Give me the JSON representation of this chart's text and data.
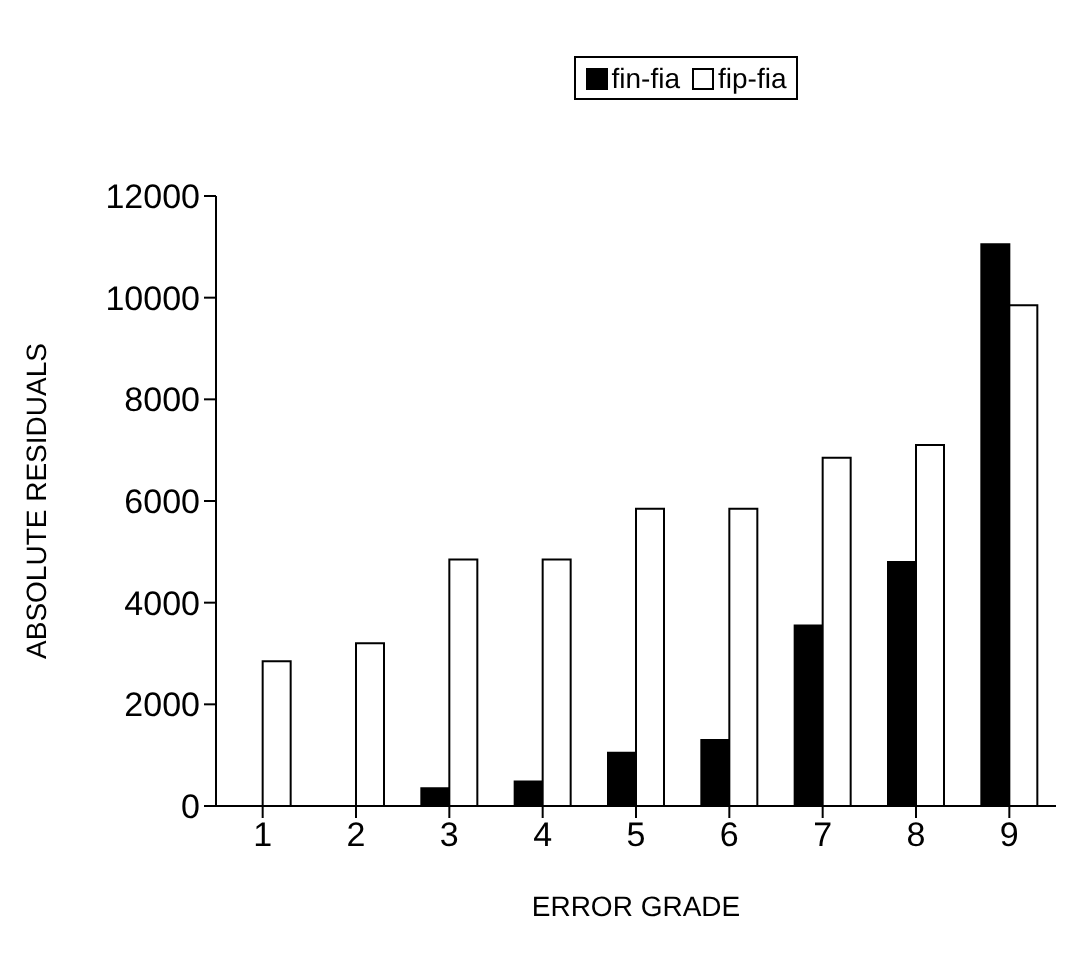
{
  "chart_data": {
    "type": "bar",
    "xlabel": "ERROR GRADE",
    "ylabel": "ABSOLUTE RESIDUALS",
    "categories": [
      "1",
      "2",
      "3",
      "4",
      "5",
      "6",
      "7",
      "8",
      "9"
    ],
    "series": [
      {
        "name": "fin-fia",
        "color": "#000000",
        "values": [
          null,
          null,
          350,
          480,
          1050,
          1300,
          3550,
          4800,
          11050
        ]
      },
      {
        "name": "fip-fia",
        "color": "#ffffff",
        "values": [
          2850,
          3200,
          4850,
          4850,
          5850,
          5850,
          6850,
          7100,
          9850
        ]
      }
    ],
    "ylim": [
      0,
      12000
    ],
    "yticks": [
      0,
      2000,
      4000,
      6000,
      8000,
      10000,
      12000
    ],
    "grid": false,
    "legend": "top"
  }
}
